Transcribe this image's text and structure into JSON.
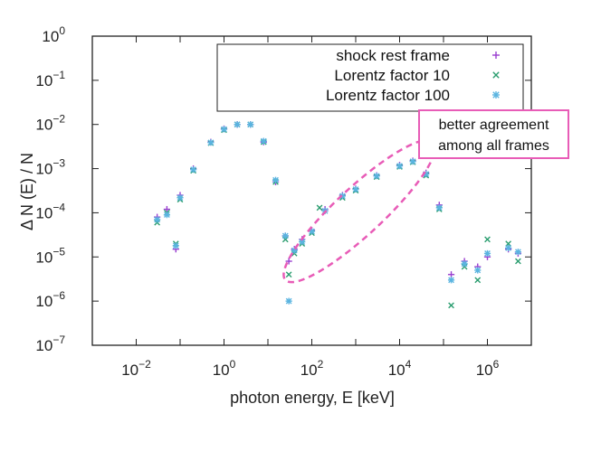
{
  "chart_data": {
    "type": "scatter",
    "title": "",
    "xlabel": "photon energy, E [keV]",
    "ylabel": "Δ N (E) / N",
    "xscale": "log",
    "yscale": "log",
    "xlim": [
      0.001,
      10000000
    ],
    "ylim": [
      1e-07,
      1
    ],
    "x_ticks": [
      {
        "base": "10",
        "exp": "−2",
        "value": 0.01
      },
      {
        "base": "10",
        "exp": "0",
        "value": 1
      },
      {
        "base": "10",
        "exp": "2",
        "value": 100
      },
      {
        "base": "10",
        "exp": "4",
        "value": 10000
      },
      {
        "base": "10",
        "exp": "6",
        "value": 1000000
      }
    ],
    "y_ticks": [
      {
        "base": "10",
        "exp": "0",
        "value": 1
      },
      {
        "base": "10",
        "exp": "−1",
        "value": 0.1
      },
      {
        "base": "10",
        "exp": "−2",
        "value": 0.01
      },
      {
        "base": "10",
        "exp": "−3",
        "value": 0.001
      },
      {
        "base": "10",
        "exp": "−4",
        "value": 0.0001
      },
      {
        "base": "10",
        "exp": "−5",
        "value": 1e-05
      },
      {
        "base": "10",
        "exp": "−6",
        "value": 1e-06
      },
      {
        "base": "10",
        "exp": "−7",
        "value": 1e-07
      }
    ],
    "legend_position": "top-right",
    "series": [
      {
        "name": "shock rest frame",
        "marker": "plus",
        "color": "#9a3fd0",
        "points": [
          [
            0.03,
            8e-05
          ],
          [
            0.05,
            0.00012
          ],
          [
            0.08,
            1.5e-05
          ],
          [
            0.1,
            0.00025
          ],
          [
            0.2,
            0.001
          ],
          [
            0.5,
            0.004
          ],
          [
            1,
            0.008
          ],
          [
            2,
            0.01
          ],
          [
            4,
            0.01
          ],
          [
            8,
            0.004
          ],
          [
            15,
            0.0005
          ],
          [
            25,
            3e-05
          ],
          [
            30,
            8e-06
          ],
          [
            40,
            1.5e-05
          ],
          [
            60,
            2.5e-05
          ],
          [
            100,
            4e-05
          ],
          [
            200,
            0.00012
          ],
          [
            500,
            0.00025
          ],
          [
            1000,
            0.00035
          ],
          [
            3000,
            0.0007
          ],
          [
            10000,
            0.0012
          ],
          [
            20000,
            0.0015
          ],
          [
            40000,
            0.0008
          ],
          [
            80000,
            0.00015
          ],
          [
            150000,
            4e-06
          ],
          [
            300000,
            8e-06
          ],
          [
            600000,
            6e-06
          ],
          [
            1000000,
            1e-05
          ],
          [
            3000000,
            1.5e-05
          ],
          [
            5000000,
            1.2e-05
          ]
        ]
      },
      {
        "name": "Lorentz factor 10",
        "marker": "cross",
        "color": "#2a9d6f",
        "points": [
          [
            0.03,
            6e-05
          ],
          [
            0.05,
            0.0001
          ],
          [
            0.08,
            2e-05
          ],
          [
            0.1,
            0.0002
          ],
          [
            0.2,
            0.0009
          ],
          [
            0.5,
            0.0038
          ],
          [
            1,
            0.0075
          ],
          [
            2,
            0.01
          ],
          [
            4,
            0.01
          ],
          [
            8,
            0.004
          ],
          [
            15,
            0.0005
          ],
          [
            25,
            2.5e-05
          ],
          [
            30,
            4e-06
          ],
          [
            40,
            1.2e-05
          ],
          [
            60,
            2e-05
          ],
          [
            100,
            3.5e-05
          ],
          [
            150,
            0.00013
          ],
          [
            500,
            0.00022
          ],
          [
            1000,
            0.00032
          ],
          [
            3000,
            0.00065
          ],
          [
            10000,
            0.0011
          ],
          [
            20000,
            0.0014
          ],
          [
            40000,
            0.0007
          ],
          [
            80000,
            0.00012
          ],
          [
            150000,
            8e-07
          ],
          [
            300000,
            6e-06
          ],
          [
            600000,
            3e-06
          ],
          [
            1000000,
            2.5e-05
          ],
          [
            3000000,
            2e-05
          ],
          [
            5000000,
            8e-06
          ]
        ]
      },
      {
        "name": "Lorentz factor 100",
        "marker": "star",
        "color": "#5ab4e0",
        "points": [
          [
            0.03,
            7e-05
          ],
          [
            0.05,
            9e-05
          ],
          [
            0.08,
            1.8e-05
          ],
          [
            0.1,
            0.00022
          ],
          [
            0.2,
            0.00095
          ],
          [
            0.5,
            0.0039
          ],
          [
            1,
            0.0078
          ],
          [
            2,
            0.01
          ],
          [
            4,
            0.01
          ],
          [
            8,
            0.0042
          ],
          [
            15,
            0.00055
          ],
          [
            25,
            3e-05
          ],
          [
            30,
            1e-06
          ],
          [
            40,
            1.4e-05
          ],
          [
            60,
            2.2e-05
          ],
          [
            100,
            3.8e-05
          ],
          [
            200,
            0.00011
          ],
          [
            500,
            0.00024
          ],
          [
            1000,
            0.00034
          ],
          [
            3000,
            0.00068
          ],
          [
            10000,
            0.00115
          ],
          [
            20000,
            0.00145
          ],
          [
            40000,
            0.00075
          ],
          [
            80000,
            0.00013
          ],
          [
            150000,
            3e-06
          ],
          [
            300000,
            7e-06
          ],
          [
            600000,
            5e-06
          ],
          [
            1000000,
            1.2e-05
          ],
          [
            3000000,
            1.6e-05
          ],
          [
            5000000,
            1.3e-05
          ]
        ]
      }
    ],
    "annotations": [
      {
        "text_lines": [
          "better agreement",
          "among all frames"
        ],
        "border_color": "#e85cb7",
        "kind": "box"
      },
      {
        "kind": "dashed-ellipse",
        "color": "#e85cb7",
        "x_range_keV": [
          25,
          60000
        ],
        "y_range": [
          3e-06,
          0.004
        ]
      }
    ]
  }
}
